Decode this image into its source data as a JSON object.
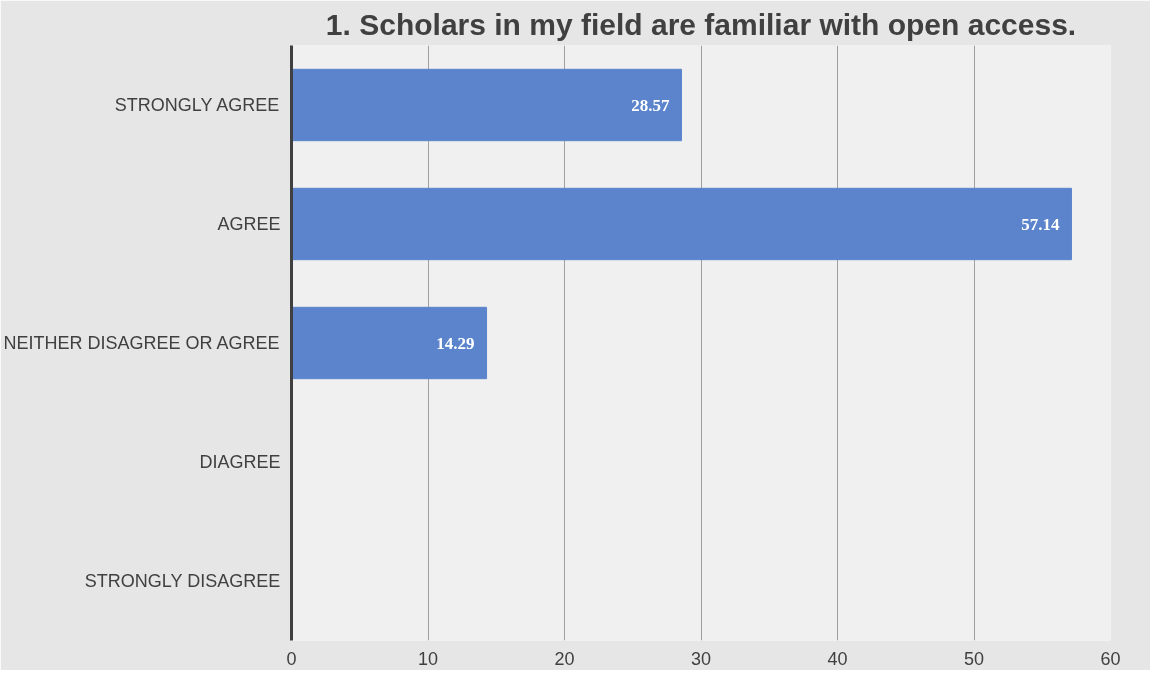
{
  "chart_data": {
    "type": "bar",
    "orientation": "horizontal",
    "title": "1. Scholars in my field are familiar with open access.",
    "categories": [
      "STRONGLY AGREE",
      "AGREE",
      "NEITHER DISAGREE OR AGREE",
      "DIAGREE",
      "STRONGLY DISAGREE"
    ],
    "values": [
      28.57,
      57.14,
      14.29,
      0,
      0
    ],
    "value_labels": [
      "28.57",
      "57.14",
      "14.29",
      null,
      null
    ],
    "color": "#5b84cc",
    "xlim": [
      0,
      60
    ],
    "xticks": [
      0,
      10,
      20,
      30,
      40,
      50,
      60
    ],
    "grid": "x"
  }
}
